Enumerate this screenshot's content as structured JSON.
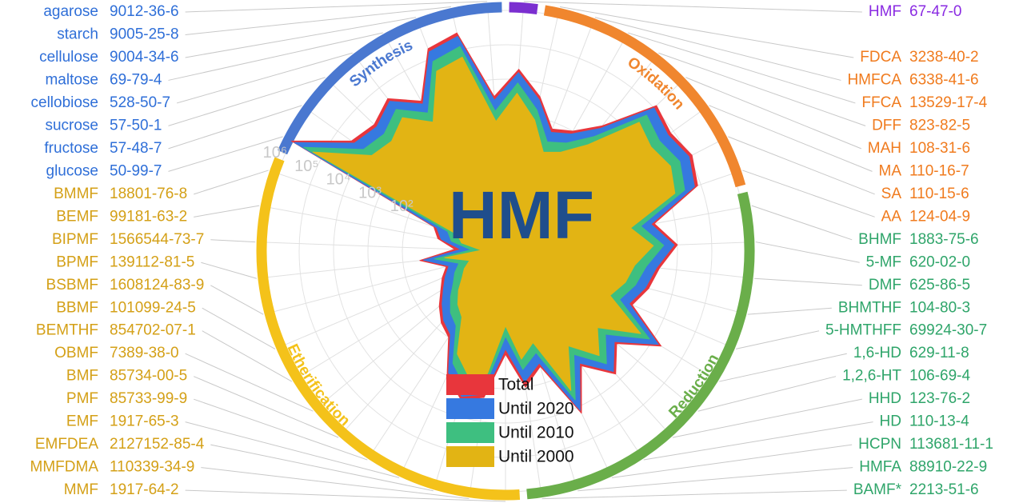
{
  "chart_data": {
    "type": "radar",
    "title": "HMF",
    "log_scale": true,
    "grid": true,
    "categories": [
      "HMF",
      "FDCA",
      "HMFCA",
      "FFCA",
      "DFF",
      "MAH",
      "MA",
      "SA",
      "AA",
      "BHMF",
      "5-MF",
      "DMF",
      "BHMTHF",
      "5-HMTHFF",
      "1,6-HD",
      "1,2,6-HT",
      "HHD",
      "HD",
      "HCPN",
      "HMFA",
      "BAMF*",
      "MMF",
      "MMFDMA",
      "EMFDEA",
      "EMF",
      "PMF",
      "BMF",
      "OBMF",
      "BEMTHF",
      "BBMF",
      "BSBMF",
      "BPMF",
      "BIPMF",
      "BEMF",
      "BMMF",
      "glucose",
      "fructose",
      "sucrose",
      "cellobiose",
      "maltose",
      "cellulose",
      "starch",
      "agarose"
    ],
    "cas": [
      "67-47-0",
      "3238-40-2",
      "6338-41-6",
      "13529-17-4",
      "823-82-5",
      "108-31-6",
      "110-16-7",
      "110-15-6",
      "124-04-9",
      "1883-75-6",
      "620-02-0",
      "625-86-5",
      "104-80-3",
      "69924-30-7",
      "629-11-8",
      "106-69-4",
      "123-76-2",
      "110-13-4",
      "113681-11-1",
      "88910-22-9",
      "2213-51-6",
      "1917-64-2",
      "110339-34-9",
      "2127152-85-4",
      "1917-65-3",
      "85733-99-9",
      "85734-00-5",
      "7389-38-0",
      "854702-07-1",
      "101099-24-5",
      "1608124-83-9",
      "139112-81-5",
      "1566544-73-7",
      "99181-63-2",
      "18801-76-8",
      "50-99-7",
      "57-48-7",
      "57-50-1",
      "528-50-7",
      "69-79-4",
      "9004-34-6",
      "9005-25-8",
      "9012-36-6"
    ],
    "ylim": [
      0.1,
      1000000
    ],
    "yticks": [
      {
        "value": 100,
        "label": "10²"
      },
      {
        "value": 1000,
        "label": "10³"
      },
      {
        "value": 10000,
        "label": "10⁴"
      },
      {
        "value": 100000,
        "label": "10⁵"
      },
      {
        "value": 1000000,
        "label": "10⁶"
      }
    ],
    "groups": [
      {
        "color": "#7b2fd0",
        "label_color": "#8a2be2",
        "from": "HMF",
        "to": "HMF"
      },
      {
        "name": "Oxidation",
        "color": "#f0862e",
        "label_color": "#f07b1e",
        "from": "FDCA",
        "to": "AA"
      },
      {
        "name": "Reduction",
        "color": "#6aae4a",
        "label_color": "#2fa56a",
        "from": "BHMF",
        "to": "BAMF*"
      },
      {
        "name": "Etherification",
        "color": "#f4c21a",
        "label_color": "#d4a017",
        "from": "MMF",
        "to": "BMMF"
      },
      {
        "name": "Synthesis",
        "color": "#4a78d0",
        "label_color": "#2f6fd8",
        "from": "glucose",
        "to": "agarose"
      }
    ],
    "series": [
      {
        "name": "Total",
        "color": "#e8363c",
        "values": [
          20000,
          4000,
          630,
          1000,
          4000,
          125000,
          80000,
          125000,
          80000,
          2500,
          10000,
          3200,
          2000,
          1000,
          20000,
          1600,
          6300,
          1000,
          16000,
          320,
          1000,
          100,
          2000,
          3200,
          1000,
          100,
          63,
          32,
          16,
          10,
          6,
          32,
          3,
          10,
          16,
          1000000,
          32000,
          20000,
          40000,
          10000,
          200000,
          316000,
          3200
        ]
      },
      {
        "name": "Until 2020",
        "color": "#3679e0",
        "values": [
          16000,
          3200,
          500,
          800,
          3200,
          100000,
          64000,
          100000,
          64000,
          2000,
          8000,
          2600,
          1600,
          800,
          16000,
          1300,
          5000,
          800,
          13000,
          250,
          700,
          70,
          1600,
          2600,
          800,
          80,
          50,
          25,
          13,
          8,
          5,
          25,
          2,
          8,
          13,
          800000,
          25000,
          16000,
          32000,
          8000,
          160000,
          250000,
          2500
        ]
      },
      {
        "name": "Until 2010",
        "color": "#3ebf80",
        "values": [
          8000,
          1600,
          250,
          400,
          1600,
          50000,
          32000,
          50000,
          32000,
          1000,
          4000,
          1300,
          800,
          400,
          8000,
          600,
          2500,
          400,
          6000,
          120,
          300,
          30,
          800,
          1300,
          400,
          40,
          25,
          12,
          6,
          4,
          2.5,
          12,
          1,
          4,
          6,
          400000,
          12000,
          8000,
          16000,
          4000,
          80000,
          125000,
          1200
        ]
      },
      {
        "name": "Until 2000",
        "color": "#e2b414",
        "values": [
          4000,
          800,
          120,
          200,
          800,
          25000,
          16000,
          25000,
          16000,
          500,
          2000,
          600,
          400,
          200,
          4000,
          300,
          1200,
          200,
          3000,
          60,
          150,
          15,
          400,
          600,
          200,
          20,
          12,
          6,
          3,
          2,
          1.2,
          6,
          0.5,
          2,
          3,
          200000,
          6000,
          4000,
          8000,
          2000,
          40000,
          60000,
          600
        ]
      }
    ]
  }
}
